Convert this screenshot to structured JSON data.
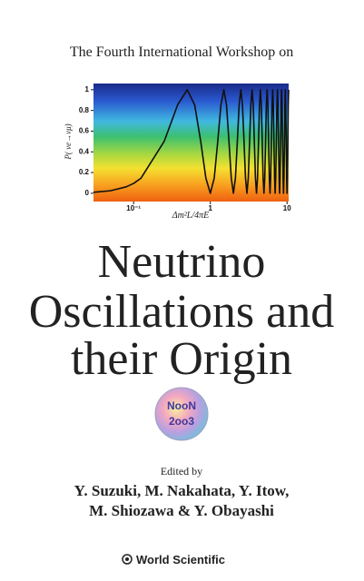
{
  "header": "The Fourth International Workshop on",
  "chart_data": {
    "type": "line",
    "x_label": "Δm²L/4πE",
    "y_label": "P( νe→νμ)",
    "log_x": true,
    "color": "#111111",
    "xlim": [
      0.03,
      10.5
    ],
    "ylim": [
      -0.08,
      1.06
    ],
    "xticks": [
      {
        "value": 0.1,
        "label": "10⁻¹"
      },
      1,
      10
    ],
    "yticks": [
      0,
      0.2,
      0.4,
      0.6,
      0.8,
      1
    ],
    "x": [
      0.03,
      0.05,
      0.08,
      0.1,
      0.125,
      0.25,
      0.375,
      0.5,
      0.625,
      0.75,
      0.875,
      1,
      1.125,
      1.25,
      1.375,
      1.5,
      1.625,
      1.75,
      1.875,
      2,
      2.125,
      2.25,
      2.375,
      2.5,
      2.625,
      2.75,
      2.875,
      3,
      3.125,
      3.25,
      3.375,
      3.5,
      3.625,
      3.75,
      3.875,
      4,
      4.125,
      4.25,
      4.375,
      4.5,
      4.625,
      4.75,
      4.875,
      5,
      5.125,
      5.25,
      5.375,
      5.5,
      5.625,
      5.75,
      5.875,
      6,
      6.125,
      6.25,
      6.375,
      6.5,
      6.625,
      6.75,
      6.875,
      7,
      7.125,
      7.25,
      7.375,
      7.5,
      7.625,
      7.75,
      7.875,
      8,
      8.125,
      8.25,
      8.375,
      8.5,
      8.625,
      8.75,
      8.875,
      9,
      9.125,
      9.25,
      9.375,
      9.5,
      9.625,
      9.75,
      9.875,
      10,
      10.125,
      10.25,
      10.375,
      10.5
    ],
    "values": [
      0.009,
      0.024,
      0.062,
      0.095,
      0.146,
      0.5,
      0.854,
      1,
      0.854,
      0.5,
      0.146,
      0,
      0.146,
      0.5,
      0.854,
      1,
      0.854,
      0.5,
      0.146,
      0,
      0.146,
      0.5,
      0.854,
      1,
      0.854,
      0.5,
      0.146,
      0,
      0.146,
      0.5,
      0.854,
      1,
      0.854,
      0.5,
      0.146,
      0,
      0.146,
      0.5,
      0.854,
      1,
      0.854,
      0.5,
      0.146,
      0,
      0.146,
      0.5,
      0.854,
      1,
      0.854,
      0.5,
      0.146,
      0,
      0.146,
      0.5,
      0.854,
      1,
      0.854,
      0.5,
      0.146,
      0,
      0.146,
      0.5,
      0.854,
      1,
      0.854,
      0.5,
      0.146,
      0,
      0.146,
      0.5,
      0.854,
      1,
      0.854,
      0.5,
      0.146,
      0,
      0.146,
      0.5,
      0.854,
      1,
      0.854,
      0.5,
      0.146,
      0,
      0.146,
      0.5,
      0.854,
      1
    ]
  },
  "title": [
    "Neutrino",
    "Oscillations and",
    "their Origin"
  ],
  "logo": [
    "NooN",
    "2oo3"
  ],
  "edited_by": "Edited by",
  "editors": [
    "Y. Suzuki, M. Nakahata, Y. Itow,",
    "M. Shiozawa & Y. Obayashi"
  ],
  "publisher": "World Scientific"
}
